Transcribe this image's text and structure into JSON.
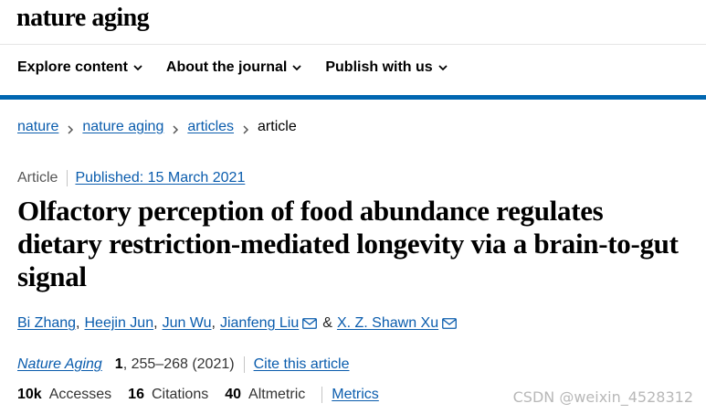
{
  "header": {
    "logo": "nature aging"
  },
  "nav": {
    "items": [
      {
        "label": "Explore content"
      },
      {
        "label": "About the journal"
      },
      {
        "label": "Publish with us"
      }
    ]
  },
  "breadcrumb": [
    "nature",
    "nature aging",
    "articles",
    "article"
  ],
  "article": {
    "type": "Article",
    "published": "Published: 15 March 2021",
    "title": "Olfactory perception of food abundance regulates dietary restriction-mediated longevity via a brain-to-gut signal",
    "authors": [
      "Bi Zhang",
      "Heejin Jun",
      "Jun Wu",
      "Jianfeng Liu",
      "X. Z. Shawn Xu"
    ],
    "author_separators": [
      ",",
      ",",
      ",",
      "&"
    ],
    "citation": {
      "journal": "Nature Aging",
      "volume": "1",
      "pages": ", 255–268 (2021)",
      "cite_label": "Cite this article"
    },
    "metrics": {
      "accesses_value": "10k",
      "accesses_label": "Accesses",
      "citations_value": "16",
      "citations_label": "Citations",
      "altmetric_value": "40",
      "altmetric_label": "Altmetric",
      "metrics_link": "Metrics"
    }
  },
  "watermark": "CSDN @weixin_4528312",
  "colors": {
    "link": "#0a5cad",
    "nav_rule": "#0167b1"
  }
}
